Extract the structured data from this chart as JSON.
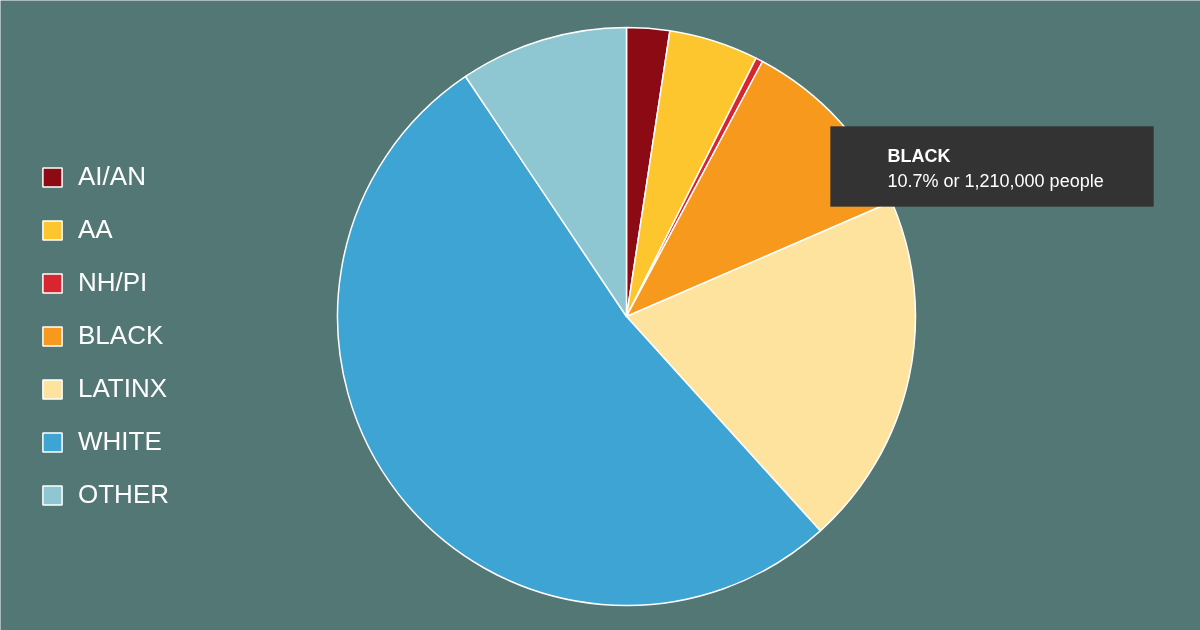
{
  "chart_data": {
    "type": "pie",
    "categories": [
      "AI/AN",
      "AA",
      "NH/PI",
      "BLACK",
      "LATINX",
      "WHITE",
      "OTHER"
    ],
    "values": [
      2.4,
      5.0,
      0.4,
      10.7,
      19.8,
      52.3,
      9.4
    ],
    "colors": [
      "#8b0a14",
      "#fec62e",
      "#d7262f",
      "#f7991c",
      "#fde39e",
      "#3ea4d4",
      "#8ec7d2"
    ],
    "legend": "left",
    "annotations": [
      "BLACK",
      "10.7% or 1,210,000 people"
    ]
  }
}
